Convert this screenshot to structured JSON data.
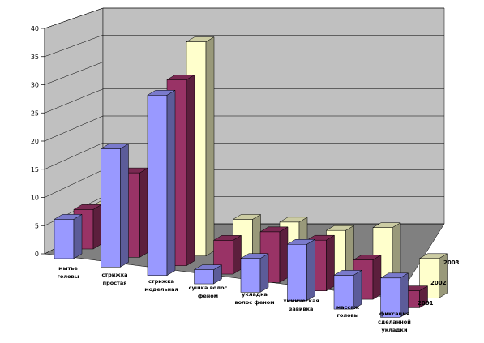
{
  "chart_data": {
    "type": "bar",
    "title": "",
    "xlabel": "",
    "ylabel": "",
    "ylim": [
      0,
      40
    ],
    "yticks": [
      "0",
      "5",
      "10",
      "15",
      "20",
      "25",
      "30",
      "35",
      "40"
    ],
    "grid": true,
    "categories": [
      [
        "мытье",
        "головы"
      ],
      [
        "стрижка",
        "простая"
      ],
      [
        "стрижка",
        "модельная"
      ],
      [
        "сушка волос",
        "феном"
      ],
      [
        "укладка",
        "волос феном"
      ],
      [
        "химическая",
        "завивка"
      ],
      [
        "массаж",
        "головы"
      ],
      [
        "фиксация",
        "сделанной",
        "укладки"
      ]
    ],
    "series": [
      {
        "name": "2001",
        "values": [
          7,
          21,
          32,
          2.5,
          6,
          10,
          6,
          7
        ]
      },
      {
        "name": "2002",
        "values": [
          7,
          15,
          33,
          6,
          9,
          9,
          7,
          3
        ]
      },
      {
        "name": "2003",
        "values": [
          6,
          8,
          38,
          8,
          9,
          9,
          11,
          7
        ]
      }
    ],
    "colors": {
      "2001": "#9999ff",
      "2002": "#993366",
      "2003": "#ffffcc",
      "wall": "#c0c0c0",
      "floor": "#808080"
    },
    "legend": "none"
  }
}
